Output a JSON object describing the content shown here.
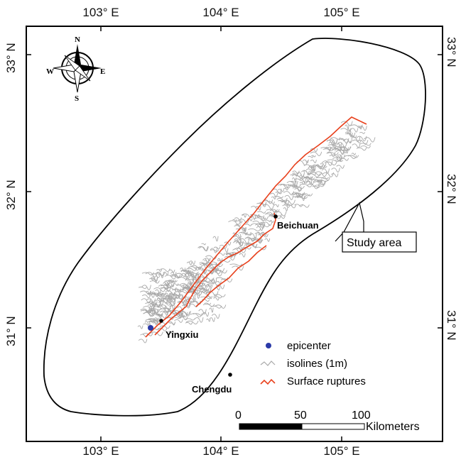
{
  "map": {
    "axes": {
      "top": [
        "103° E",
        "104° E",
        "105° E"
      ],
      "bottom": [
        "103° E",
        "104° E",
        "105° E"
      ],
      "left": [
        "33° N",
        "32° N",
        "31° N"
      ],
      "right": [
        "33° N",
        "32° N",
        "31° N"
      ]
    },
    "compass": {
      "n": "N",
      "s": "S",
      "e": "E",
      "w": "W"
    },
    "places": [
      {
        "name": "Beichuan",
        "lon": 104.45,
        "lat": 31.82
      },
      {
        "name": "Yingxiu",
        "lon": 103.48,
        "lat": 31.06
      },
      {
        "name": "Chengdu",
        "lon": 104.06,
        "lat": 30.67
      }
    ],
    "epicenter": {
      "lon": 103.42,
      "lat": 31.01
    },
    "study_area_label": "Study area",
    "legend": {
      "epicenter": "epicenter",
      "isolines": "isolines (1m)",
      "ruptures": "Surface ruptures"
    },
    "scale": {
      "ticks": [
        "0",
        "50",
        "100"
      ],
      "unit": "Kilometers"
    },
    "colors": {
      "rupture": "#e8401c",
      "isoline": "#a8a8a8",
      "epicenter": "#2b3aa8",
      "frame": "#000000"
    }
  }
}
